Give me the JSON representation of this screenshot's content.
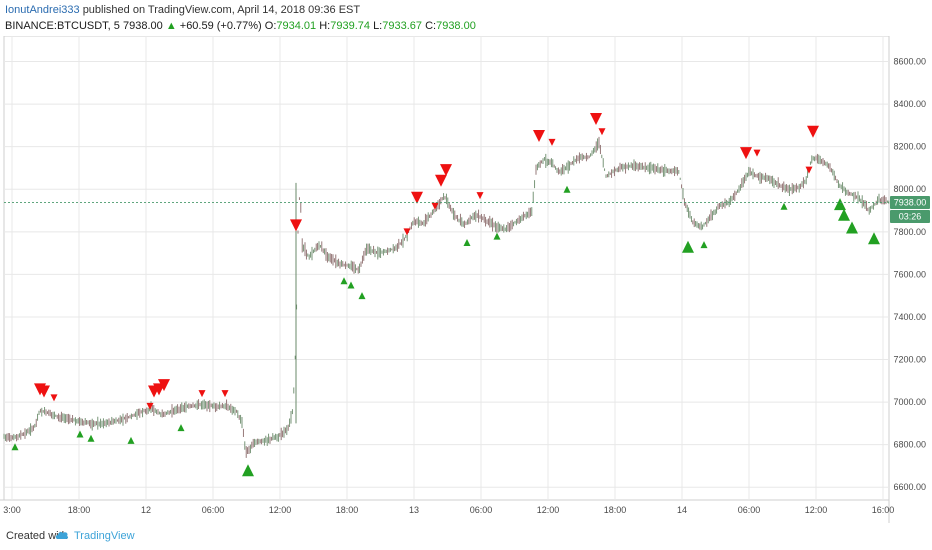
{
  "header": {
    "author": "IonutAndrei333",
    "published_text": "published on TradingView.com, April 14, 2018 09:36 EST",
    "symbol": "BINANCE:BTCUSDT, 5",
    "last": "7938.00",
    "change": "+60.59 (+0.77%)",
    "o_label": "O:",
    "o_value": "7934.01",
    "h_label": "H:",
    "h_value": "7939.74",
    "l_label": "L:",
    "l_value": "7933.67",
    "c_label": "C:",
    "c_value": "7938.00"
  },
  "footer": {
    "created_with": "Created with",
    "brand": "TradingView"
  },
  "colors": {
    "up": "#22a022",
    "down": "#ee1111",
    "grid": "#e8e8e8",
    "last_price_bg": "#4a9a6c"
  },
  "chart_data": {
    "type": "line",
    "ylim": [
      6540,
      8720
    ],
    "y_ticks": [
      6600,
      6800,
      7000,
      7200,
      7400,
      7600,
      7800,
      8000,
      8200,
      8400,
      8600
    ],
    "y_tick_labels": [
      "6600.00",
      "6800.00",
      "7000.00",
      "7200.00",
      "7400.00",
      "7600.00",
      "7800.00",
      "8000.00",
      "8200.00",
      "8400.00",
      "8600.00"
    ],
    "x_tick_labels": [
      "3:00",
      "18:00",
      "12",
      "06:00",
      "12:00",
      "18:00",
      "13",
      "06:00",
      "12:00",
      "18:00",
      "14",
      "06:00",
      "12:00",
      "16:00"
    ],
    "last_price": "7938.00",
    "countdown": "03:26",
    "price_path": [
      [
        0,
        6840
      ],
      [
        8,
        6830
      ],
      [
        20,
        6850
      ],
      [
        30,
        6880
      ],
      [
        36,
        6960
      ],
      [
        44,
        6950
      ],
      [
        55,
        6930
      ],
      [
        65,
        6920
      ],
      [
        75,
        6910
      ],
      [
        85,
        6900
      ],
      [
        100,
        6900
      ],
      [
        112,
        6910
      ],
      [
        125,
        6930
      ],
      [
        135,
        6950
      ],
      [
        148,
        6970
      ],
      [
        158,
        6940
      ],
      [
        170,
        6960
      ],
      [
        185,
        6980
      ],
      [
        198,
        6990
      ],
      [
        210,
        6980
      ],
      [
        222,
        6980
      ],
      [
        232,
        6960
      ],
      [
        238,
        6900
      ],
      [
        242,
        6760
      ],
      [
        250,
        6810
      ],
      [
        262,
        6820
      ],
      [
        275,
        6840
      ],
      [
        284,
        6880
      ],
      [
        289,
        6960
      ],
      [
        292,
        7300
      ],
      [
        294,
        7800
      ],
      [
        296,
        8020
      ],
      [
        298,
        7740
      ],
      [
        305,
        7680
      ],
      [
        315,
        7740
      ],
      [
        325,
        7680
      ],
      [
        335,
        7650
      ],
      [
        345,
        7640
      ],
      [
        355,
        7620
      ],
      [
        362,
        7720
      ],
      [
        375,
        7700
      ],
      [
        390,
        7720
      ],
      [
        400,
        7760
      ],
      [
        410,
        7850
      ],
      [
        420,
        7840
      ],
      [
        430,
        7900
      ],
      [
        440,
        7970
      ],
      [
        450,
        7880
      ],
      [
        460,
        7830
      ],
      [
        470,
        7880
      ],
      [
        480,
        7860
      ],
      [
        490,
        7830
      ],
      [
        500,
        7810
      ],
      [
        510,
        7840
      ],
      [
        520,
        7870
      ],
      [
        528,
        7900
      ],
      [
        532,
        8100
      ],
      [
        540,
        8140
      ],
      [
        548,
        8120
      ],
      [
        555,
        8080
      ],
      [
        565,
        8110
      ],
      [
        575,
        8150
      ],
      [
        585,
        8150
      ],
      [
        595,
        8220
      ],
      [
        602,
        8060
      ],
      [
        615,
        8100
      ],
      [
        630,
        8110
      ],
      [
        645,
        8100
      ],
      [
        660,
        8090
      ],
      [
        675,
        8080
      ],
      [
        680,
        7950
      ],
      [
        688,
        7850
      ],
      [
        698,
        7820
      ],
      [
        705,
        7860
      ],
      [
        715,
        7920
      ],
      [
        725,
        7940
      ],
      [
        735,
        8000
      ],
      [
        745,
        8080
      ],
      [
        755,
        8060
      ],
      [
        765,
        8050
      ],
      [
        775,
        8020
      ],
      [
        785,
        8000
      ],
      [
        795,
        8010
      ],
      [
        802,
        8040
      ],
      [
        808,
        8150
      ],
      [
        815,
        8140
      ],
      [
        825,
        8110
      ],
      [
        835,
        8020
      ],
      [
        845,
        7980
      ],
      [
        855,
        7960
      ],
      [
        865,
        7900
      ],
      [
        875,
        7950
      ],
      [
        885,
        7940
      ]
    ],
    "sell_signals": [
      {
        "x": 36,
        "price": 7060,
        "size": "large"
      },
      {
        "x": 40,
        "price": 7050,
        "size": "large"
      },
      {
        "x": 50,
        "price": 7020,
        "size": "small"
      },
      {
        "x": 146,
        "price": 6980,
        "size": "small"
      },
      {
        "x": 150,
        "price": 7050,
        "size": "large"
      },
      {
        "x": 155,
        "price": 7060,
        "size": "large"
      },
      {
        "x": 160,
        "price": 7080,
        "size": "large"
      },
      {
        "x": 198,
        "price": 7040,
        "size": "small"
      },
      {
        "x": 221,
        "price": 7040,
        "size": "small"
      },
      {
        "x": 292,
        "price": 7830,
        "size": "large"
      },
      {
        "x": 403,
        "price": 7800,
        "size": "small"
      },
      {
        "x": 413,
        "price": 7960,
        "size": "large"
      },
      {
        "x": 431,
        "price": 7920,
        "size": "small"
      },
      {
        "x": 437,
        "price": 8040,
        "size": "large"
      },
      {
        "x": 442,
        "price": 8090,
        "size": "large"
      },
      {
        "x": 476,
        "price": 7970,
        "size": "small"
      },
      {
        "x": 535,
        "price": 8250,
        "size": "large"
      },
      {
        "x": 548,
        "price": 8220,
        "size": "small"
      },
      {
        "x": 592,
        "price": 8330,
        "size": "large"
      },
      {
        "x": 598,
        "price": 8270,
        "size": "small"
      },
      {
        "x": 742,
        "price": 8170,
        "size": "large"
      },
      {
        "x": 753,
        "price": 8170,
        "size": "small"
      },
      {
        "x": 805,
        "price": 8090,
        "size": "small"
      },
      {
        "x": 809,
        "price": 8270,
        "size": "large"
      }
    ],
    "buy_signals": [
      {
        "x": 11,
        "price": 6790,
        "size": "small"
      },
      {
        "x": 76,
        "price": 6850,
        "size": "small"
      },
      {
        "x": 87,
        "price": 6830,
        "size": "small"
      },
      {
        "x": 127,
        "price": 6820,
        "size": "small"
      },
      {
        "x": 177,
        "price": 6880,
        "size": "small"
      },
      {
        "x": 244,
        "price": 6680,
        "size": "large"
      },
      {
        "x": 340,
        "price": 7570,
        "size": "small"
      },
      {
        "x": 347,
        "price": 7550,
        "size": "small"
      },
      {
        "x": 358,
        "price": 7500,
        "size": "small"
      },
      {
        "x": 463,
        "price": 7750,
        "size": "small"
      },
      {
        "x": 493,
        "price": 7780,
        "size": "small"
      },
      {
        "x": 563,
        "price": 8000,
        "size": "small"
      },
      {
        "x": 684,
        "price": 7730,
        "size": "large"
      },
      {
        "x": 700,
        "price": 7740,
        "size": "small"
      },
      {
        "x": 780,
        "price": 7920,
        "size": "small"
      },
      {
        "x": 836,
        "price": 7930,
        "size": "large"
      },
      {
        "x": 840,
        "price": 7880,
        "size": "large"
      },
      {
        "x": 848,
        "price": 7820,
        "size": "large"
      },
      {
        "x": 870,
        "price": 7770,
        "size": "large"
      }
    ]
  }
}
